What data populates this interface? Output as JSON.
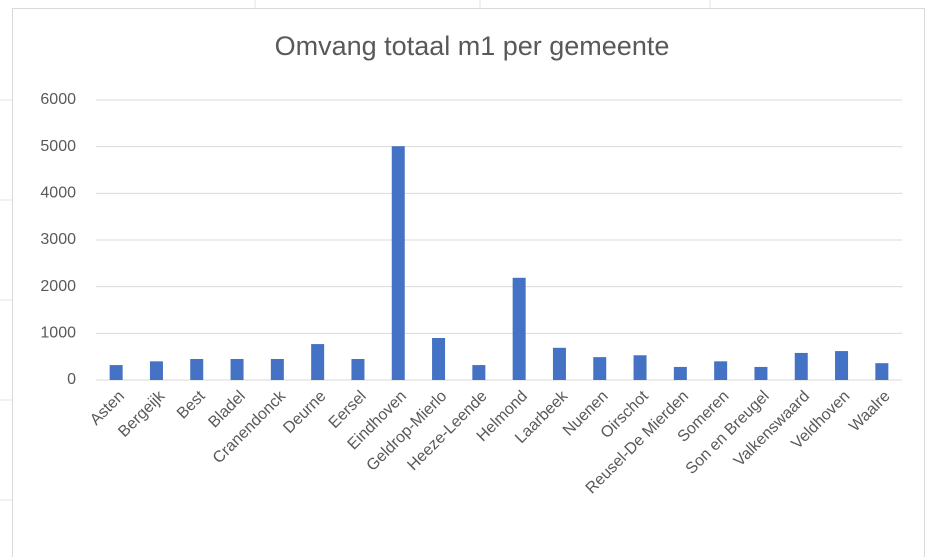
{
  "chart_data": {
    "type": "bar",
    "title": "Omvang totaal m1 per gemeente",
    "categories": [
      "Asten",
      "Bergeijk",
      "Best",
      "Bladel",
      "Cranendonck",
      "Deurne",
      "Eersel",
      "Eindhoven",
      "Geldrop-Mierlo",
      "Heeze-Leende",
      "Helmond",
      "Laarbeek",
      "Nuenen",
      "Oirschot",
      "Reusel-De Mierden",
      "Someren",
      "Son en Breugel",
      "Valkenswaard",
      "Veldhoven",
      "Waalre"
    ],
    "values": [
      320,
      400,
      450,
      450,
      450,
      770,
      450,
      5010,
      900,
      320,
      2190,
      690,
      490,
      530,
      280,
      400,
      280,
      580,
      620,
      360
    ],
    "color": "#4472c4",
    "ylim": [
      0,
      6000
    ],
    "yticks": [
      0,
      1000,
      2000,
      3000,
      4000,
      5000,
      6000
    ],
    "grid": true
  }
}
